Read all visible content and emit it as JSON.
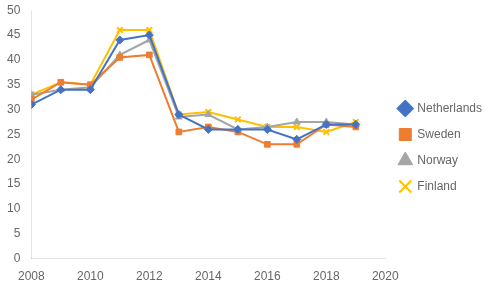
{
  "chart_data": {
    "type": "line",
    "x": [
      2008,
      2009,
      2010,
      2011,
      2012,
      2013,
      2014,
      2015,
      2016,
      2017,
      2018,
      2019
    ],
    "series": [
      {
        "name": "Netherlands",
        "color": "#4472C4",
        "marker": "diamond",
        "values": [
          31,
          34,
          34,
          44,
          45,
          29,
          26,
          26,
          26,
          24,
          27,
          27
        ]
      },
      {
        "name": "Sweden",
        "color": "#ED7D31",
        "marker": "square",
        "values": [
          32,
          35.5,
          35,
          40.5,
          41,
          25.5,
          26.5,
          25.5,
          23,
          23,
          27,
          26.5
        ]
      },
      {
        "name": "Norway",
        "color": "#A5A5A5",
        "marker": "triangle",
        "values": [
          33,
          34,
          34.5,
          41,
          44,
          28.5,
          29,
          26,
          26.5,
          27.5,
          27.5,
          27
        ]
      },
      {
        "name": "Finland",
        "color": "#FFC000",
        "marker": "x",
        "values": [
          33,
          35.5,
          35,
          46,
          46,
          29,
          29.5,
          28,
          26.5,
          26.5,
          25.5,
          27.5
        ]
      }
    ],
    "xlim": [
      2008,
      2020
    ],
    "xticks": [
      2008,
      2010,
      2012,
      2014,
      2016,
      2018,
      2020
    ],
    "ylim": [
      0,
      50
    ],
    "yticks": [
      0,
      5,
      10,
      15,
      20,
      25,
      30,
      35,
      40,
      45,
      50
    ],
    "grid": false,
    "legend": "right"
  }
}
